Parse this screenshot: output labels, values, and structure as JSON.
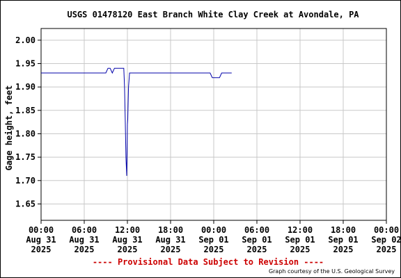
{
  "chart_data": {
    "type": "line",
    "title": "USGS 01478120 East Branch White Clay Creek at Avondale, PA",
    "ylabel": "Gage height, feet",
    "xlabel": "",
    "ylim": [
      1.615,
      2.025
    ],
    "xlim_hours": [
      0,
      48
    ],
    "y_ticks": [
      "2.00",
      "1.95",
      "1.90",
      "1.85",
      "1.80",
      "1.75",
      "1.70",
      "1.65"
    ],
    "y_tick_values": [
      2.0,
      1.95,
      1.9,
      1.85,
      1.8,
      1.75,
      1.7,
      1.65
    ],
    "x_ticks": [
      {
        "hours": 0,
        "time": "00:00",
        "date": "Aug 31",
        "year": "2025"
      },
      {
        "hours": 6,
        "time": "06:00",
        "date": "Aug 31",
        "year": "2025"
      },
      {
        "hours": 12,
        "time": "12:00",
        "date": "Aug 31",
        "year": "2025"
      },
      {
        "hours": 18,
        "time": "18:00",
        "date": "Aug 31",
        "year": "2025"
      },
      {
        "hours": 24,
        "time": "00:00",
        "date": "Sep 01",
        "year": "2025"
      },
      {
        "hours": 30,
        "time": "06:00",
        "date": "Sep 01",
        "year": "2025"
      },
      {
        "hours": 36,
        "time": "12:00",
        "date": "Sep 01",
        "year": "2025"
      },
      {
        "hours": 42,
        "time": "18:00",
        "date": "Sep 01",
        "year": "2025"
      },
      {
        "hours": 48,
        "time": "00:00",
        "date": "Sep 02",
        "year": "2025"
      }
    ],
    "grid": true,
    "line_color": "#0000aa",
    "series": [
      {
        "x_hours": [
          0,
          9.0,
          9.3,
          9.6,
          9.9,
          10.2,
          10.5,
          11.5,
          11.6,
          11.7,
          11.75,
          11.8,
          11.9,
          11.95,
          12.0,
          12.05,
          12.15,
          12.3,
          12.5,
          13.0,
          18.0,
          23.5,
          23.8,
          24.8,
          25.1,
          26.5
        ],
        "y": [
          1.93,
          1.93,
          1.94,
          1.94,
          1.93,
          1.94,
          1.94,
          1.94,
          1.9,
          1.83,
          1.79,
          1.75,
          1.71,
          1.76,
          1.82,
          1.83,
          1.9,
          1.93,
          1.93,
          1.93,
          1.93,
          1.93,
          1.92,
          1.92,
          1.93,
          1.93
        ]
      }
    ]
  },
  "footer": {
    "provisional": "---- Provisional Data Subject to Revision ----",
    "credit": "Graph courtesy of the U.S. Geological Survey"
  }
}
